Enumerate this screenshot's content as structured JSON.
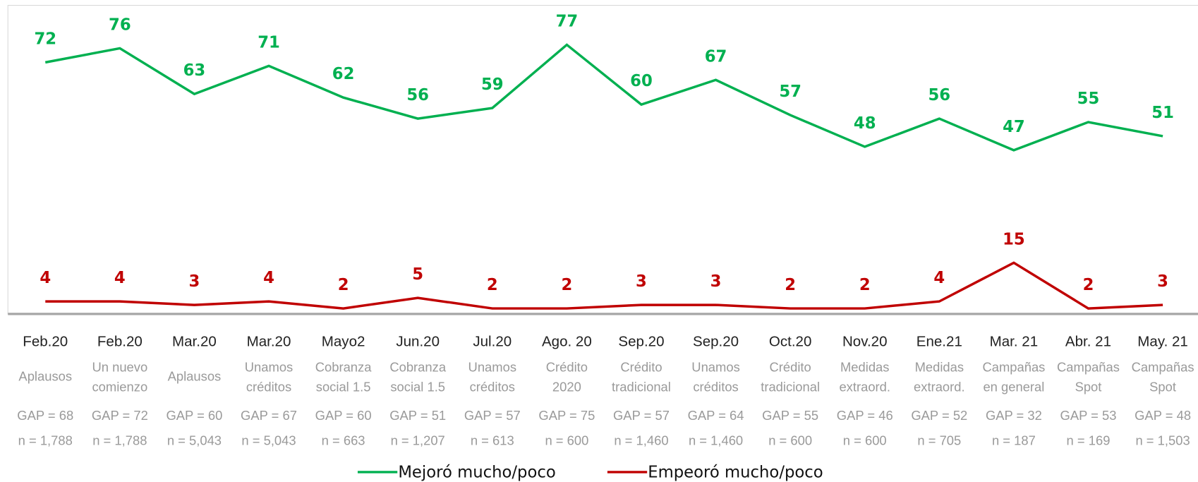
{
  "chart_data": {
    "type": "line",
    "categories": [
      "Feb.20",
      "Feb.20",
      "Mar.20",
      "Mar.20",
      "Mayo2",
      "Jun.20",
      "Jul.20",
      "Ago. 20",
      "Sep.20",
      "Sep.20",
      "Oct.20",
      "Nov.20",
      "Ene.21",
      "Mar. 21",
      "Abr. 21",
      "May. 21"
    ],
    "campaigns": [
      [
        "Aplausos"
      ],
      [
        "Un nuevo",
        "comienzo"
      ],
      [
        "Aplausos"
      ],
      [
        "Unamos",
        "créditos"
      ],
      [
        "Cobranza",
        "social 1.5"
      ],
      [
        "Cobranza",
        "social 1.5"
      ],
      [
        "Unamos",
        "créditos"
      ],
      [
        "Crédito",
        "2020"
      ],
      [
        "Crédito",
        "tradicional"
      ],
      [
        "Unamos",
        "créditos"
      ],
      [
        "Crédito",
        "tradicional"
      ],
      [
        "Medidas",
        "extraord."
      ],
      [
        "Medidas",
        "extraord."
      ],
      [
        "Campañas",
        "en general"
      ],
      [
        "Campañas",
        "Spot"
      ],
      [
        "Campañas",
        "Spot"
      ]
    ],
    "gaps": [
      "GAP = 68",
      "GAP = 72",
      "GAP = 60",
      "GAP = 67",
      "GAP = 60",
      "GAP = 51",
      "GAP = 57",
      "GAP = 75",
      "GAP = 57",
      "GAP = 64",
      "GAP = 55",
      "GAP = 46",
      "GAP = 52",
      "GAP = 32",
      "GAP = 53",
      "GAP = 48"
    ],
    "sample_sizes": [
      "n = 1,788",
      "n = 1,788",
      "n = 5,043",
      "n = 5,043",
      "n = 663",
      "n = 1,207",
      "n = 613",
      "n = 600",
      "n = 1,460",
      "n = 1,460",
      "n = 600",
      "n = 600",
      "n = 705",
      "n = 187",
      "n = 169",
      "n = 1,503"
    ],
    "series": [
      {
        "name": "Mejoró mucho/poco",
        "color": "#00b050",
        "values": [
          72,
          76,
          63,
          71,
          62,
          56,
          59,
          77,
          60,
          67,
          57,
          48,
          56,
          47,
          55,
          51
        ]
      },
      {
        "name": "Empeoró mucho/poco",
        "color": "#c00000",
        "values": [
          4,
          4,
          3,
          4,
          2,
          5,
          2,
          2,
          3,
          3,
          2,
          2,
          4,
          15,
          2,
          3
        ]
      }
    ],
    "ylim": [
      0,
      88
    ]
  }
}
